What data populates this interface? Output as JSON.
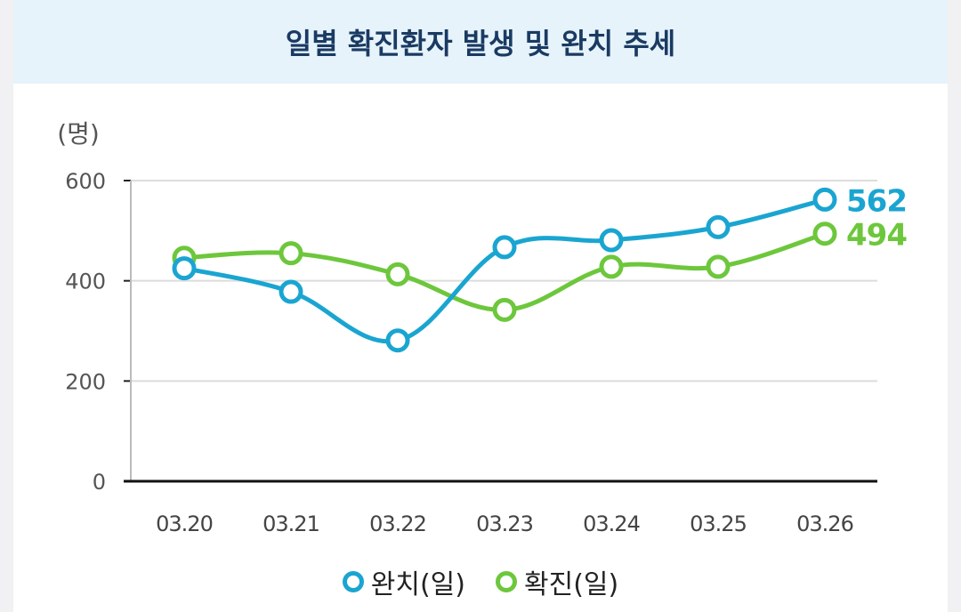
{
  "chart_data": {
    "type": "line",
    "title": "일별 확진환자 발생 및 완치 추세",
    "ylabel": "(명)",
    "xlabel": "",
    "ylim": [
      0,
      600
    ],
    "yticks": [
      "0",
      "200",
      "400",
      "600"
    ],
    "categories": [
      "03.20",
      "03.21",
      "03.22",
      "03.23",
      "03.24",
      "03.25",
      "03.26"
    ],
    "series": [
      {
        "name": "완치(일)",
        "color": "#1aa5d1",
        "values": [
          425,
          378,
          281,
          467,
          481,
          507,
          562
        ],
        "end_label": "562"
      },
      {
        "name": "확진(일)",
        "color": "#6dc73c",
        "values": [
          446,
          455,
          413,
          342,
          428,
          428,
          494
        ],
        "end_label": "494"
      }
    ],
    "grid": true,
    "legend_position": "bottom"
  }
}
